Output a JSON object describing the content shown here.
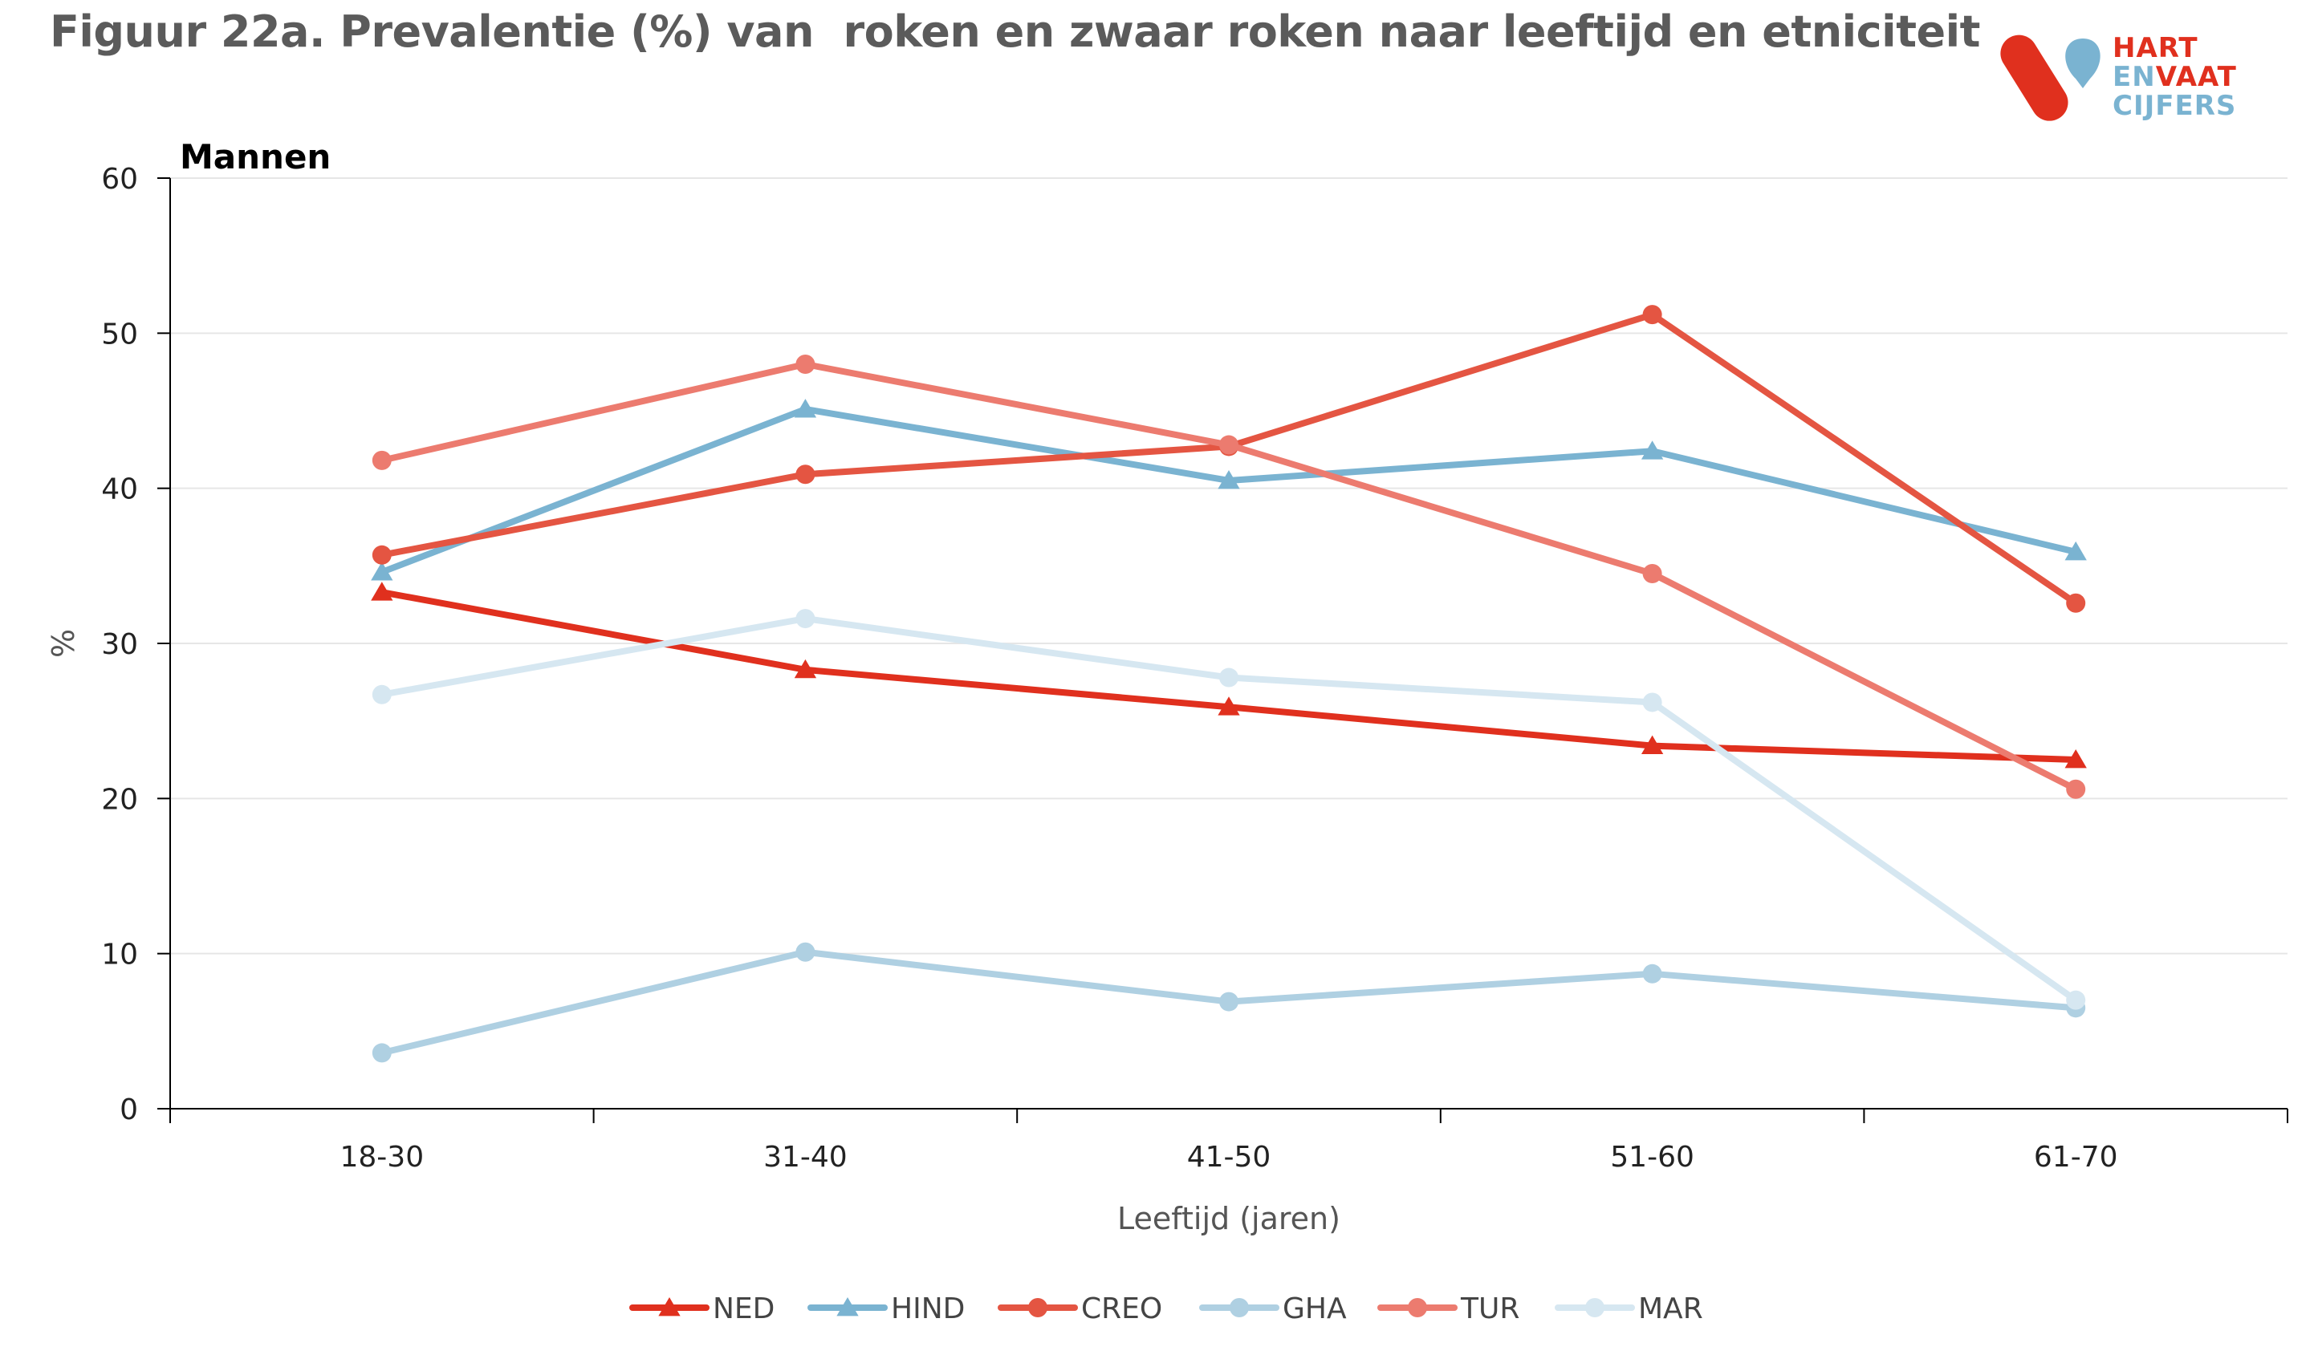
{
  "title": "Figuur 22a. Prevalentie (%) van  roken en zwaar roken naar leeftijd en etniciteit",
  "logo": {
    "line1": "HART",
    "line2a": "EN",
    "line2b": "VAAT",
    "line3": "CIJFERS"
  },
  "colors": {
    "red": "#e0301e",
    "blue": "#7ab3d1",
    "creo": "#e45542",
    "gha": "#afd0e2",
    "tur": "#ec7b6f",
    "mar": "#d6e7f1"
  },
  "chart_data": {
    "type": "line",
    "panel_label": "Mannen",
    "xlabel": "Leeftijd (jaren)",
    "ylabel": "%",
    "ylim": [
      0,
      60
    ],
    "yticks": [
      0,
      10,
      20,
      30,
      40,
      50,
      60
    ],
    "grid": true,
    "legend_position": "bottom",
    "categories": [
      "18-30",
      "31-40",
      "41-50",
      "51-60",
      "61-70"
    ],
    "series": [
      {
        "name": "NED",
        "marker": "triangle",
        "color": "#e0301e",
        "values": [
          33.3,
          28.3,
          25.9,
          23.4,
          22.5
        ]
      },
      {
        "name": "HIND",
        "marker": "triangle",
        "color": "#7ab3d1",
        "values": [
          34.6,
          45.1,
          40.5,
          42.4,
          35.9
        ]
      },
      {
        "name": "CREO",
        "marker": "circle",
        "color": "#e45542",
        "values": [
          35.7,
          40.9,
          42.7,
          51.2,
          32.6
        ]
      },
      {
        "name": "GHA",
        "marker": "circle",
        "color": "#afd0e2",
        "values": [
          3.6,
          10.1,
          6.9,
          8.7,
          6.5
        ]
      },
      {
        "name": "TUR",
        "marker": "circle",
        "color": "#ec7b6f",
        "values": [
          41.8,
          48.0,
          42.8,
          34.5,
          20.6
        ]
      },
      {
        "name": "MAR",
        "marker": "circle",
        "color": "#d6e7f1",
        "values": [
          26.7,
          31.6,
          27.8,
          26.2,
          7.0
        ]
      }
    ]
  }
}
